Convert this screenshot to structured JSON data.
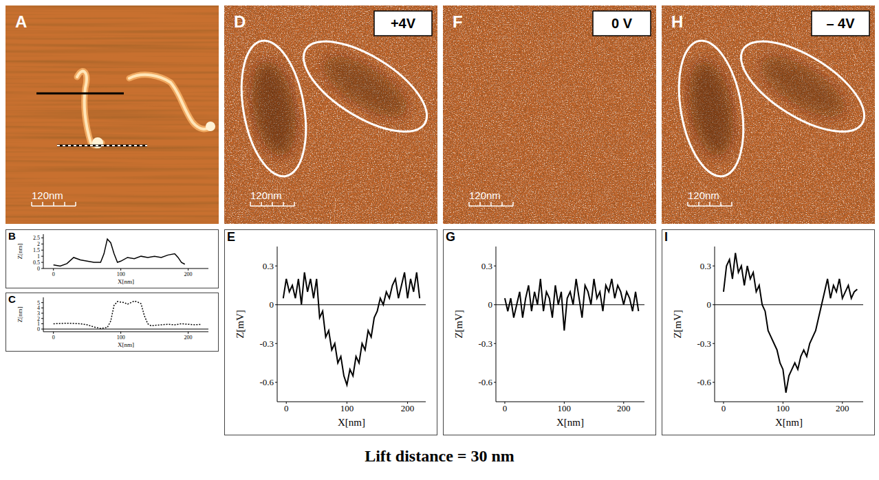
{
  "images": [
    {
      "panel": "A",
      "scale_bar": "120nm"
    },
    {
      "panel": "D",
      "bias": "+4V",
      "scale_bar": "120nm"
    },
    {
      "panel": "F",
      "bias": "0 V",
      "scale_bar": "120nm"
    },
    {
      "panel": "H",
      "bias": "– 4V",
      "scale_bar": "120nm"
    }
  ],
  "chart_data": [
    {
      "panel": "B",
      "type": "line",
      "x_label": "X[nm]",
      "y_label": "Z[nm]",
      "color": "#000000",
      "line_style": "solid",
      "x": [
        0,
        10,
        20,
        30,
        40,
        50,
        60,
        70,
        75,
        80,
        85,
        90,
        95,
        100,
        110,
        120,
        130,
        140,
        150,
        160,
        170,
        180,
        185,
        190,
        195
      ],
      "values": [
        0.3,
        0.2,
        0.4,
        0.9,
        0.7,
        0.6,
        0.5,
        0.5,
        1.2,
        2.4,
        2.1,
        1.2,
        0.5,
        0.6,
        0.9,
        0.8,
        1.0,
        0.9,
        1.0,
        0.9,
        1.1,
        1.2,
        0.9,
        0.5,
        0.35
      ],
      "xlim": [
        -15,
        230
      ],
      "ylim": [
        0,
        2.8
      ],
      "xticks": [
        0,
        100,
        200
      ],
      "yticks": [
        0,
        0.5,
        1,
        1.5,
        2,
        2.5
      ]
    },
    {
      "panel": "C",
      "type": "line",
      "x_label": "X[nm]",
      "y_label": "Z[nm]",
      "color": "#000000",
      "line_style": "dotted",
      "x": [
        0,
        20,
        40,
        50,
        60,
        70,
        80,
        85,
        90,
        95,
        100,
        105,
        110,
        115,
        120,
        125,
        130,
        135,
        140,
        145,
        150,
        160,
        170,
        180,
        190,
        200,
        210,
        220
      ],
      "values": [
        1,
        1.1,
        1,
        0.8,
        0.4,
        0.1,
        0.3,
        1.5,
        4.5,
        5.2,
        5.1,
        5.0,
        4.7,
        5.0,
        5.3,
        5.1,
        4.8,
        2.5,
        1.0,
        0.6,
        0.7,
        0.8,
        0.9,
        0.8,
        1,
        0.9,
        0.8,
        0.9
      ],
      "xlim": [
        -15,
        230
      ],
      "ylim": [
        -0.5,
        6
      ],
      "xticks": [
        0,
        100,
        200
      ],
      "yticks": [
        0,
        1,
        2,
        3,
        4,
        5
      ]
    },
    {
      "panel": "E",
      "type": "line",
      "x_label": "X[nm]",
      "y_label": "Z[mV]",
      "color": "#000000",
      "line_style": "solid",
      "x": [
        -5,
        0,
        5,
        10,
        15,
        20,
        25,
        30,
        35,
        40,
        45,
        50,
        55,
        60,
        65,
        70,
        75,
        80,
        85,
        90,
        95,
        100,
        105,
        110,
        115,
        120,
        125,
        130,
        135,
        140,
        145,
        150,
        155,
        160,
        165,
        170,
        175,
        180,
        185,
        190,
        195,
        200,
        205,
        210,
        215,
        220
      ],
      "values": [
        0.05,
        0.2,
        0.1,
        0.15,
        0.05,
        0.2,
        0,
        0.25,
        0.1,
        0.2,
        0.05,
        0.2,
        -0.1,
        -0.05,
        -0.25,
        -0.2,
        -0.35,
        -0.3,
        -0.45,
        -0.4,
        -0.55,
        -0.62,
        -0.5,
        -0.55,
        -0.4,
        -0.45,
        -0.3,
        -0.35,
        -0.2,
        -0.25,
        -0.1,
        -0.05,
        0.05,
        0,
        0.1,
        0.05,
        0.15,
        0.2,
        0.05,
        0.15,
        0.25,
        0.05,
        0.2,
        0.1,
        0.25,
        0.05
      ],
      "xlim": [
        -15,
        230
      ],
      "ylim": [
        -0.75,
        0.45
      ],
      "xticks": [
        0,
        100,
        200
      ],
      "yticks": [
        -0.6,
        -0.3,
        0,
        0.3
      ]
    },
    {
      "panel": "G",
      "type": "line",
      "x_label": "X[nm]",
      "y_label": "Z[mV]",
      "color": "#000000",
      "line_style": "solid",
      "x": [
        0,
        5,
        10,
        15,
        20,
        25,
        30,
        35,
        40,
        45,
        50,
        55,
        60,
        65,
        70,
        75,
        80,
        85,
        90,
        95,
        100,
        105,
        110,
        115,
        120,
        125,
        130,
        135,
        140,
        145,
        150,
        155,
        160,
        165,
        170,
        175,
        180,
        185,
        190,
        195,
        200,
        205,
        210,
        215,
        220,
        225
      ],
      "values": [
        0.05,
        -0.05,
        0.05,
        -0.1,
        0,
        0.1,
        -0.1,
        0.05,
        0.15,
        -0.05,
        0.1,
        0,
        0.2,
        -0.05,
        0.1,
        0.05,
        -0.1,
        0.15,
        0,
        0.1,
        -0.2,
        0.05,
        0.1,
        0,
        0.2,
        0.05,
        -0.1,
        0.15,
        0.1,
        0,
        0.2,
        0.05,
        0.1,
        -0.05,
        0.15,
        0.1,
        0.2,
        0.05,
        0.15,
        0.1,
        0,
        0.1,
        0.05,
        -0.05,
        0.1,
        -0.05
      ],
      "xlim": [
        -15,
        235
      ],
      "ylim": [
        -0.75,
        0.45
      ],
      "xticks": [
        0,
        100,
        200
      ],
      "yticks": [
        -0.6,
        -0.3,
        0,
        0.3
      ]
    },
    {
      "panel": "I",
      "type": "line",
      "x_label": "X[nm]",
      "y_label": "Z[mV]",
      "color": "#000000",
      "line_style": "solid",
      "x": [
        0,
        5,
        10,
        15,
        20,
        25,
        30,
        35,
        40,
        45,
        50,
        55,
        60,
        65,
        70,
        75,
        80,
        85,
        90,
        95,
        100,
        105,
        110,
        115,
        120,
        125,
        130,
        135,
        140,
        145,
        150,
        155,
        160,
        165,
        170,
        175,
        180,
        185,
        190,
        195,
        200,
        205,
        210,
        215,
        220,
        225
      ],
      "values": [
        0.1,
        0.3,
        0.35,
        0.2,
        0.4,
        0.25,
        0.3,
        0.15,
        0.3,
        0.2,
        0.25,
        0.1,
        0.15,
        0,
        -0.05,
        -0.2,
        -0.25,
        -0.3,
        -0.35,
        -0.45,
        -0.5,
        -0.68,
        -0.55,
        -0.5,
        -0.45,
        -0.5,
        -0.4,
        -0.35,
        -0.4,
        -0.3,
        -0.25,
        -0.2,
        -0.1,
        0,
        0.1,
        0.2,
        0.05,
        0.15,
        0.1,
        0.2,
        0.05,
        0.1,
        0.15,
        0.05,
        0.1,
        0.12
      ],
      "xlim": [
        -15,
        235
      ],
      "ylim": [
        -0.75,
        0.45
      ],
      "xticks": [
        0,
        100,
        200
      ],
      "yticks": [
        -0.6,
        -0.3,
        0,
        0.3
      ]
    }
  ],
  "caption": "Lift distance = 30 nm"
}
